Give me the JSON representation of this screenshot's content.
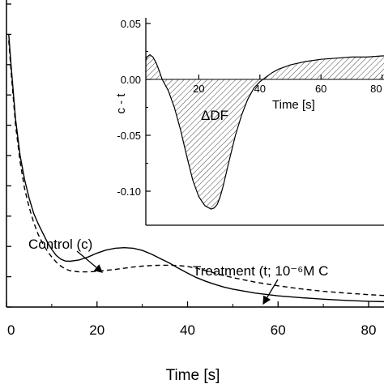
{
  "chart_data": [
    {
      "type": "line",
      "xlabel": "Time [s]",
      "ylabel": "",
      "xlim": [
        0,
        90
      ],
      "ylim": [
        0.0,
        1.0
      ],
      "x_ticks": [
        "0",
        "20",
        "40",
        "60",
        "80"
      ],
      "series": [
        {
          "name": "Control (c)",
          "style": "solid",
          "x": [
            0.5,
            1,
            2,
            3,
            4,
            5,
            6,
            7,
            8,
            9,
            10,
            11,
            12,
            13,
            14,
            16,
            18,
            20,
            22,
            24,
            26,
            28,
            30,
            32,
            34,
            36,
            38,
            40,
            42,
            44,
            46,
            48,
            50,
            55,
            60,
            65,
            70,
            75,
            80,
            85,
            90
          ],
          "y": [
            0.9,
            0.8,
            0.62,
            0.5,
            0.42,
            0.36,
            0.31,
            0.275,
            0.245,
            0.215,
            0.19,
            0.17,
            0.158,
            0.152,
            0.151,
            0.155,
            0.165,
            0.178,
            0.188,
            0.194,
            0.196,
            0.194,
            0.187,
            0.175,
            0.16,
            0.145,
            0.128,
            0.112,
            0.097,
            0.085,
            0.075,
            0.066,
            0.059,
            0.046,
            0.037,
            0.031,
            0.026,
            0.022,
            0.019,
            0.017,
            0.015
          ]
        },
        {
          "name": "Treatment (t;  10⁻⁶M C",
          "style": "dashed",
          "x": [
            0.5,
            1,
            2,
            3,
            4,
            5,
            6,
            7,
            8,
            9,
            10,
            11,
            12,
            13,
            14,
            16,
            18,
            20,
            22,
            24,
            26,
            28,
            30,
            32,
            34,
            36,
            38,
            40,
            42,
            44,
            46,
            48,
            50,
            55,
            60,
            65,
            70,
            75,
            80,
            85,
            90
          ],
          "y": [
            0.88,
            0.78,
            0.6,
            0.48,
            0.39,
            0.33,
            0.28,
            0.24,
            0.21,
            0.185,
            0.165,
            0.148,
            0.135,
            0.126,
            0.12,
            0.116,
            0.116,
            0.118,
            0.121,
            0.124,
            0.128,
            0.132,
            0.135,
            0.137,
            0.138,
            0.138,
            0.137,
            0.134,
            0.128,
            0.12,
            0.112,
            0.104,
            0.097,
            0.082,
            0.07,
            0.06,
            0.052,
            0.046,
            0.041,
            0.037,
            0.034
          ]
        }
      ],
      "annotations": [
        "Control (c)",
        "Treatment (t;  10⁻⁶M C"
      ]
    },
    {
      "type": "area",
      "xlabel": "Time [s]",
      "ylabel": "c - t",
      "xlim": [
        0,
        85
      ],
      "ylim": [
        -0.12,
        0.05
      ],
      "y_ticks": [
        "0.05",
        "0.00",
        "-0.05",
        "-0.10"
      ],
      "x_ticks": [
        "20",
        "40",
        "60",
        "80"
      ],
      "series": [
        {
          "name": "c - t",
          "x": [
            0,
            1,
            2,
            3,
            4,
            5,
            6,
            7,
            8,
            10,
            12,
            14,
            16,
            18,
            20,
            22,
            24,
            25,
            26,
            27,
            28,
            30,
            32,
            34,
            36,
            38,
            40,
            42,
            44,
            46,
            48,
            50,
            55,
            60,
            65,
            70,
            75,
            80,
            85
          ],
          "y": [
            -0.034,
            -0.005,
            0.012,
            0.02,
            0.022,
            0.02,
            0.015,
            0.008,
            0.0,
            -0.01,
            -0.025,
            -0.045,
            -0.068,
            -0.09,
            -0.105,
            -0.113,
            -0.116,
            -0.115,
            -0.112,
            -0.105,
            -0.095,
            -0.072,
            -0.05,
            -0.032,
            -0.018,
            -0.008,
            -0.002,
            0.002,
            0.006,
            0.009,
            0.011,
            0.013,
            0.016,
            0.018,
            0.019,
            0.02,
            0.02,
            0.021,
            0.021
          ]
        }
      ],
      "annotations": [
        "ΔDF"
      ]
    }
  ]
}
